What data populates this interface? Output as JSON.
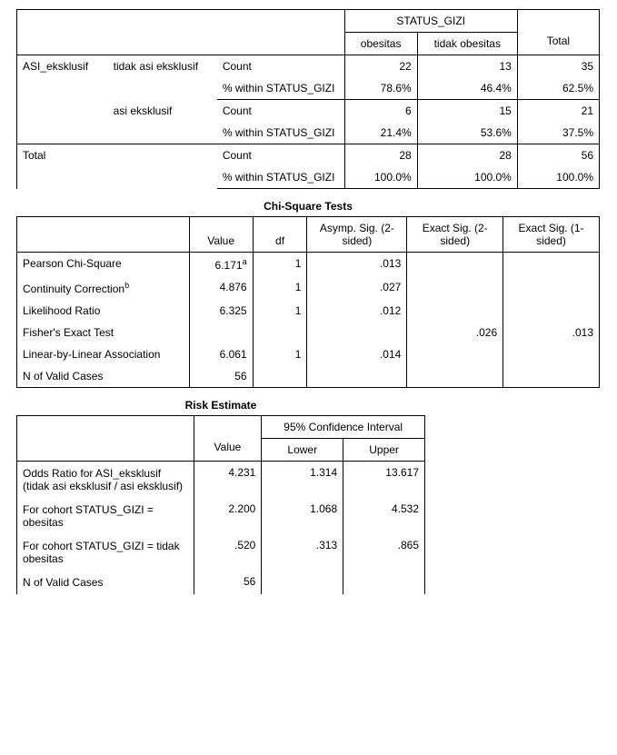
{
  "crosstab": {
    "col_group": "STATUS_GIZI",
    "cols": [
      "obesitas",
      "tidak obesitas"
    ],
    "total_label": "Total",
    "row_var": "ASI_eksklusif",
    "measures": {
      "count": "Count",
      "pct": "% within STATUS_GIZI"
    },
    "groups": [
      {
        "label": "tidak asi eksklusif",
        "count": [
          "22",
          "13",
          "35"
        ],
        "pct": [
          "78.6%",
          "46.4%",
          "62.5%"
        ]
      },
      {
        "label": "asi eksklusif",
        "count": [
          "6",
          "15",
          "21"
        ],
        "pct": [
          "21.4%",
          "53.6%",
          "37.5%"
        ]
      }
    ],
    "total": {
      "label": "Total",
      "count": [
        "28",
        "28",
        "56"
      ],
      "pct": [
        "100.0%",
        "100.0%",
        "100.0%"
      ]
    }
  },
  "chisq": {
    "title": "Chi-Square Tests",
    "headers": [
      "Value",
      "df",
      "Asymp. Sig. (2-sided)",
      "Exact Sig. (2-sided)",
      "Exact Sig. (1-sided)"
    ],
    "rows": [
      {
        "label": "Pearson Chi-Square",
        "sup": "a",
        "v": [
          "6.171",
          "1",
          ".013",
          "",
          ""
        ],
        "supcell": 0
      },
      {
        "label": "Continuity Correction",
        "sup": "b",
        "labelsup": true,
        "v": [
          "4.876",
          "1",
          ".027",
          "",
          ""
        ]
      },
      {
        "label": "Likelihood Ratio",
        "v": [
          "6.325",
          "1",
          ".012",
          "",
          ""
        ]
      },
      {
        "label": "Fisher's Exact Test",
        "v": [
          "",
          "",
          "",
          ".026",
          ".013"
        ]
      },
      {
        "label": "Linear-by-Linear Association",
        "v": [
          "6.061",
          "1",
          ".014",
          "",
          ""
        ]
      },
      {
        "label": "N of Valid Cases",
        "v": [
          "56",
          "",
          "",
          "",
          ""
        ]
      }
    ]
  },
  "risk": {
    "title": "Risk Estimate",
    "ci_label": "95% Confidence Interval",
    "headers": [
      "Value",
      "Lower",
      "Upper"
    ],
    "rows": [
      {
        "label": "Odds Ratio for ASI_eksklusif (tidak asi eksklusif / asi eksklusif)",
        "v": [
          "4.231",
          "1.314",
          "13.617"
        ]
      },
      {
        "label": "For cohort STATUS_GIZI = obesitas",
        "v": [
          "2.200",
          "1.068",
          "4.532"
        ]
      },
      {
        "label": "For cohort STATUS_GIZI = tidak obesitas",
        "v": [
          ".520",
          ".313",
          ".865"
        ]
      },
      {
        "label": "N of Valid Cases",
        "v": [
          "56",
          "",
          ""
        ]
      }
    ]
  },
  "colors": {
    "border": "#000000",
    "bg": "#ffffff",
    "text": "#000000"
  }
}
